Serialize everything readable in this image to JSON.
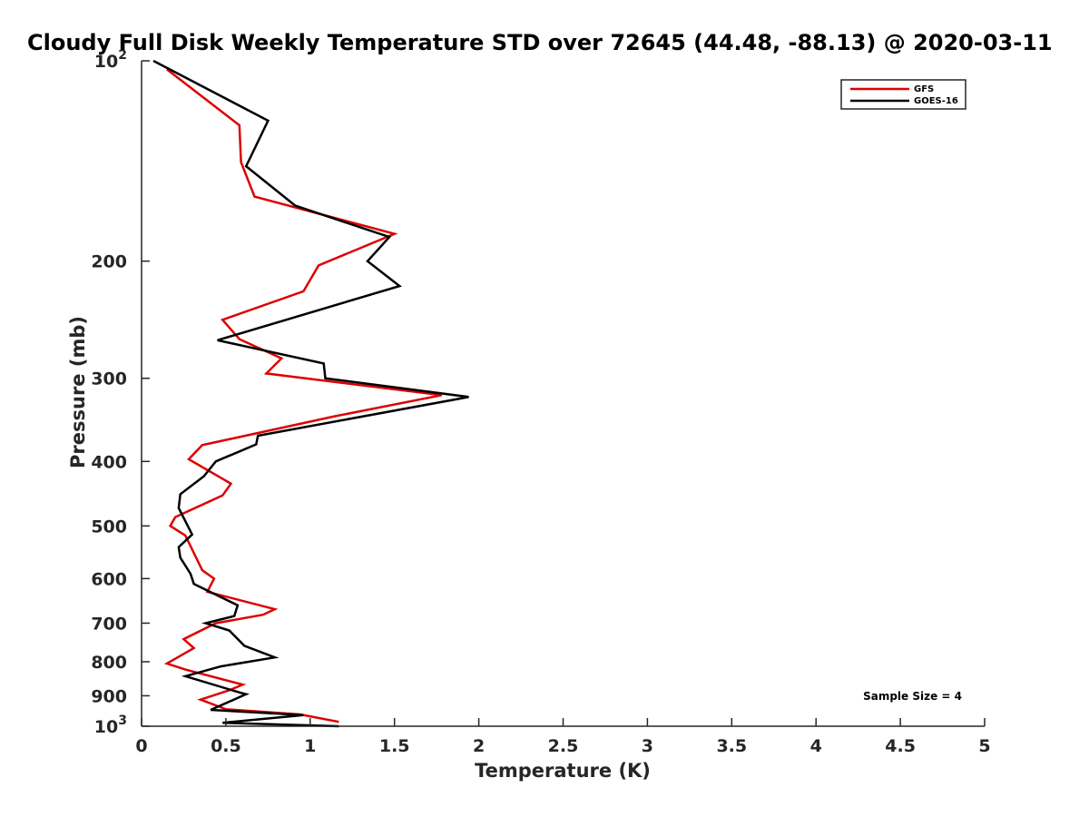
{
  "chart_data": {
    "type": "line",
    "title": "Cloudy Full Disk Weekly Temperature STD over 72645 (44.48, -88.13) @ 2020-03-11",
    "xlabel": "Temperature (K)",
    "ylabel": "Pressure (mb)",
    "xlim": [
      0,
      5
    ],
    "ylim": [
      100,
      1000
    ],
    "y_scale": "log",
    "y_reversed": true,
    "x_ticks": [
      0,
      0.5,
      1,
      1.5,
      2,
      2.5,
      3,
      3.5,
      4,
      4.5,
      5
    ],
    "x_tick_labels": [
      "0",
      "0.5",
      "1",
      "1.5",
      "2",
      "2.5",
      "3",
      "3.5",
      "4",
      "4.5",
      "5"
    ],
    "y_ticks": [
      100,
      200,
      300,
      400,
      500,
      600,
      700,
      800,
      900,
      1000
    ],
    "y_tick_labels": [
      "10^2",
      "200",
      "300",
      "400",
      "500",
      "600",
      "700",
      "800",
      "900",
      "10^3"
    ],
    "grid": false,
    "legend_position": "top-right",
    "annotation": "Sample Size = 4",
    "series": [
      {
        "name": "GFS",
        "color": "#dd0000",
        "points": [
          [
            0.15,
            103
          ],
          [
            0.58,
            125
          ],
          [
            0.59,
            142
          ],
          [
            0.67,
            160
          ],
          [
            1.5,
            182
          ],
          [
            1.05,
            203
          ],
          [
            0.96,
            222
          ],
          [
            0.48,
            245
          ],
          [
            0.58,
            262
          ],
          [
            0.83,
            280
          ],
          [
            0.74,
            295
          ],
          [
            1.78,
            318
          ],
          [
            1.15,
            342
          ],
          [
            0.36,
            378
          ],
          [
            0.28,
            397
          ],
          [
            0.53,
            432
          ],
          [
            0.48,
            450
          ],
          [
            0.2,
            485
          ],
          [
            0.17,
            500
          ],
          [
            0.26,
            517
          ],
          [
            0.36,
            583
          ],
          [
            0.43,
            600
          ],
          [
            0.39,
            628
          ],
          [
            0.79,
            667
          ],
          [
            0.72,
            680
          ],
          [
            0.44,
            700
          ],
          [
            0.25,
            740
          ],
          [
            0.31,
            763
          ],
          [
            0.15,
            805
          ],
          [
            0.26,
            822
          ],
          [
            0.6,
            866
          ],
          [
            0.52,
            883
          ],
          [
            0.35,
            912
          ],
          [
            0.5,
            943
          ],
          [
            0.94,
            960
          ],
          [
            1.17,
            985
          ]
        ]
      },
      {
        "name": "GOES-16",
        "color": "#000000",
        "points": [
          [
            0.07,
            100
          ],
          [
            0.75,
            123
          ],
          [
            0.62,
            144
          ],
          [
            0.91,
            165
          ],
          [
            1.47,
            184
          ],
          [
            1.34,
            200
          ],
          [
            1.53,
            218
          ],
          [
            0.45,
            263
          ],
          [
            1.08,
            285
          ],
          [
            1.09,
            300
          ],
          [
            1.94,
            320
          ],
          [
            0.69,
            366
          ],
          [
            0.68,
            377
          ],
          [
            0.44,
            400
          ],
          [
            0.37,
            421
          ],
          [
            0.23,
            448
          ],
          [
            0.22,
            470
          ],
          [
            0.3,
            515
          ],
          [
            0.22,
            538
          ],
          [
            0.23,
            558
          ],
          [
            0.29,
            590
          ],
          [
            0.31,
            611
          ],
          [
            0.57,
            658
          ],
          [
            0.55,
            683
          ],
          [
            0.38,
            700
          ],
          [
            0.52,
            718
          ],
          [
            0.61,
            757
          ],
          [
            0.79,
            788
          ],
          [
            0.47,
            813
          ],
          [
            0.26,
            841
          ],
          [
            0.59,
            891
          ],
          [
            0.62,
            895
          ],
          [
            0.41,
            945
          ],
          [
            0.96,
            962
          ],
          [
            0.48,
            988
          ],
          [
            1.17,
            1000
          ]
        ]
      }
    ]
  }
}
